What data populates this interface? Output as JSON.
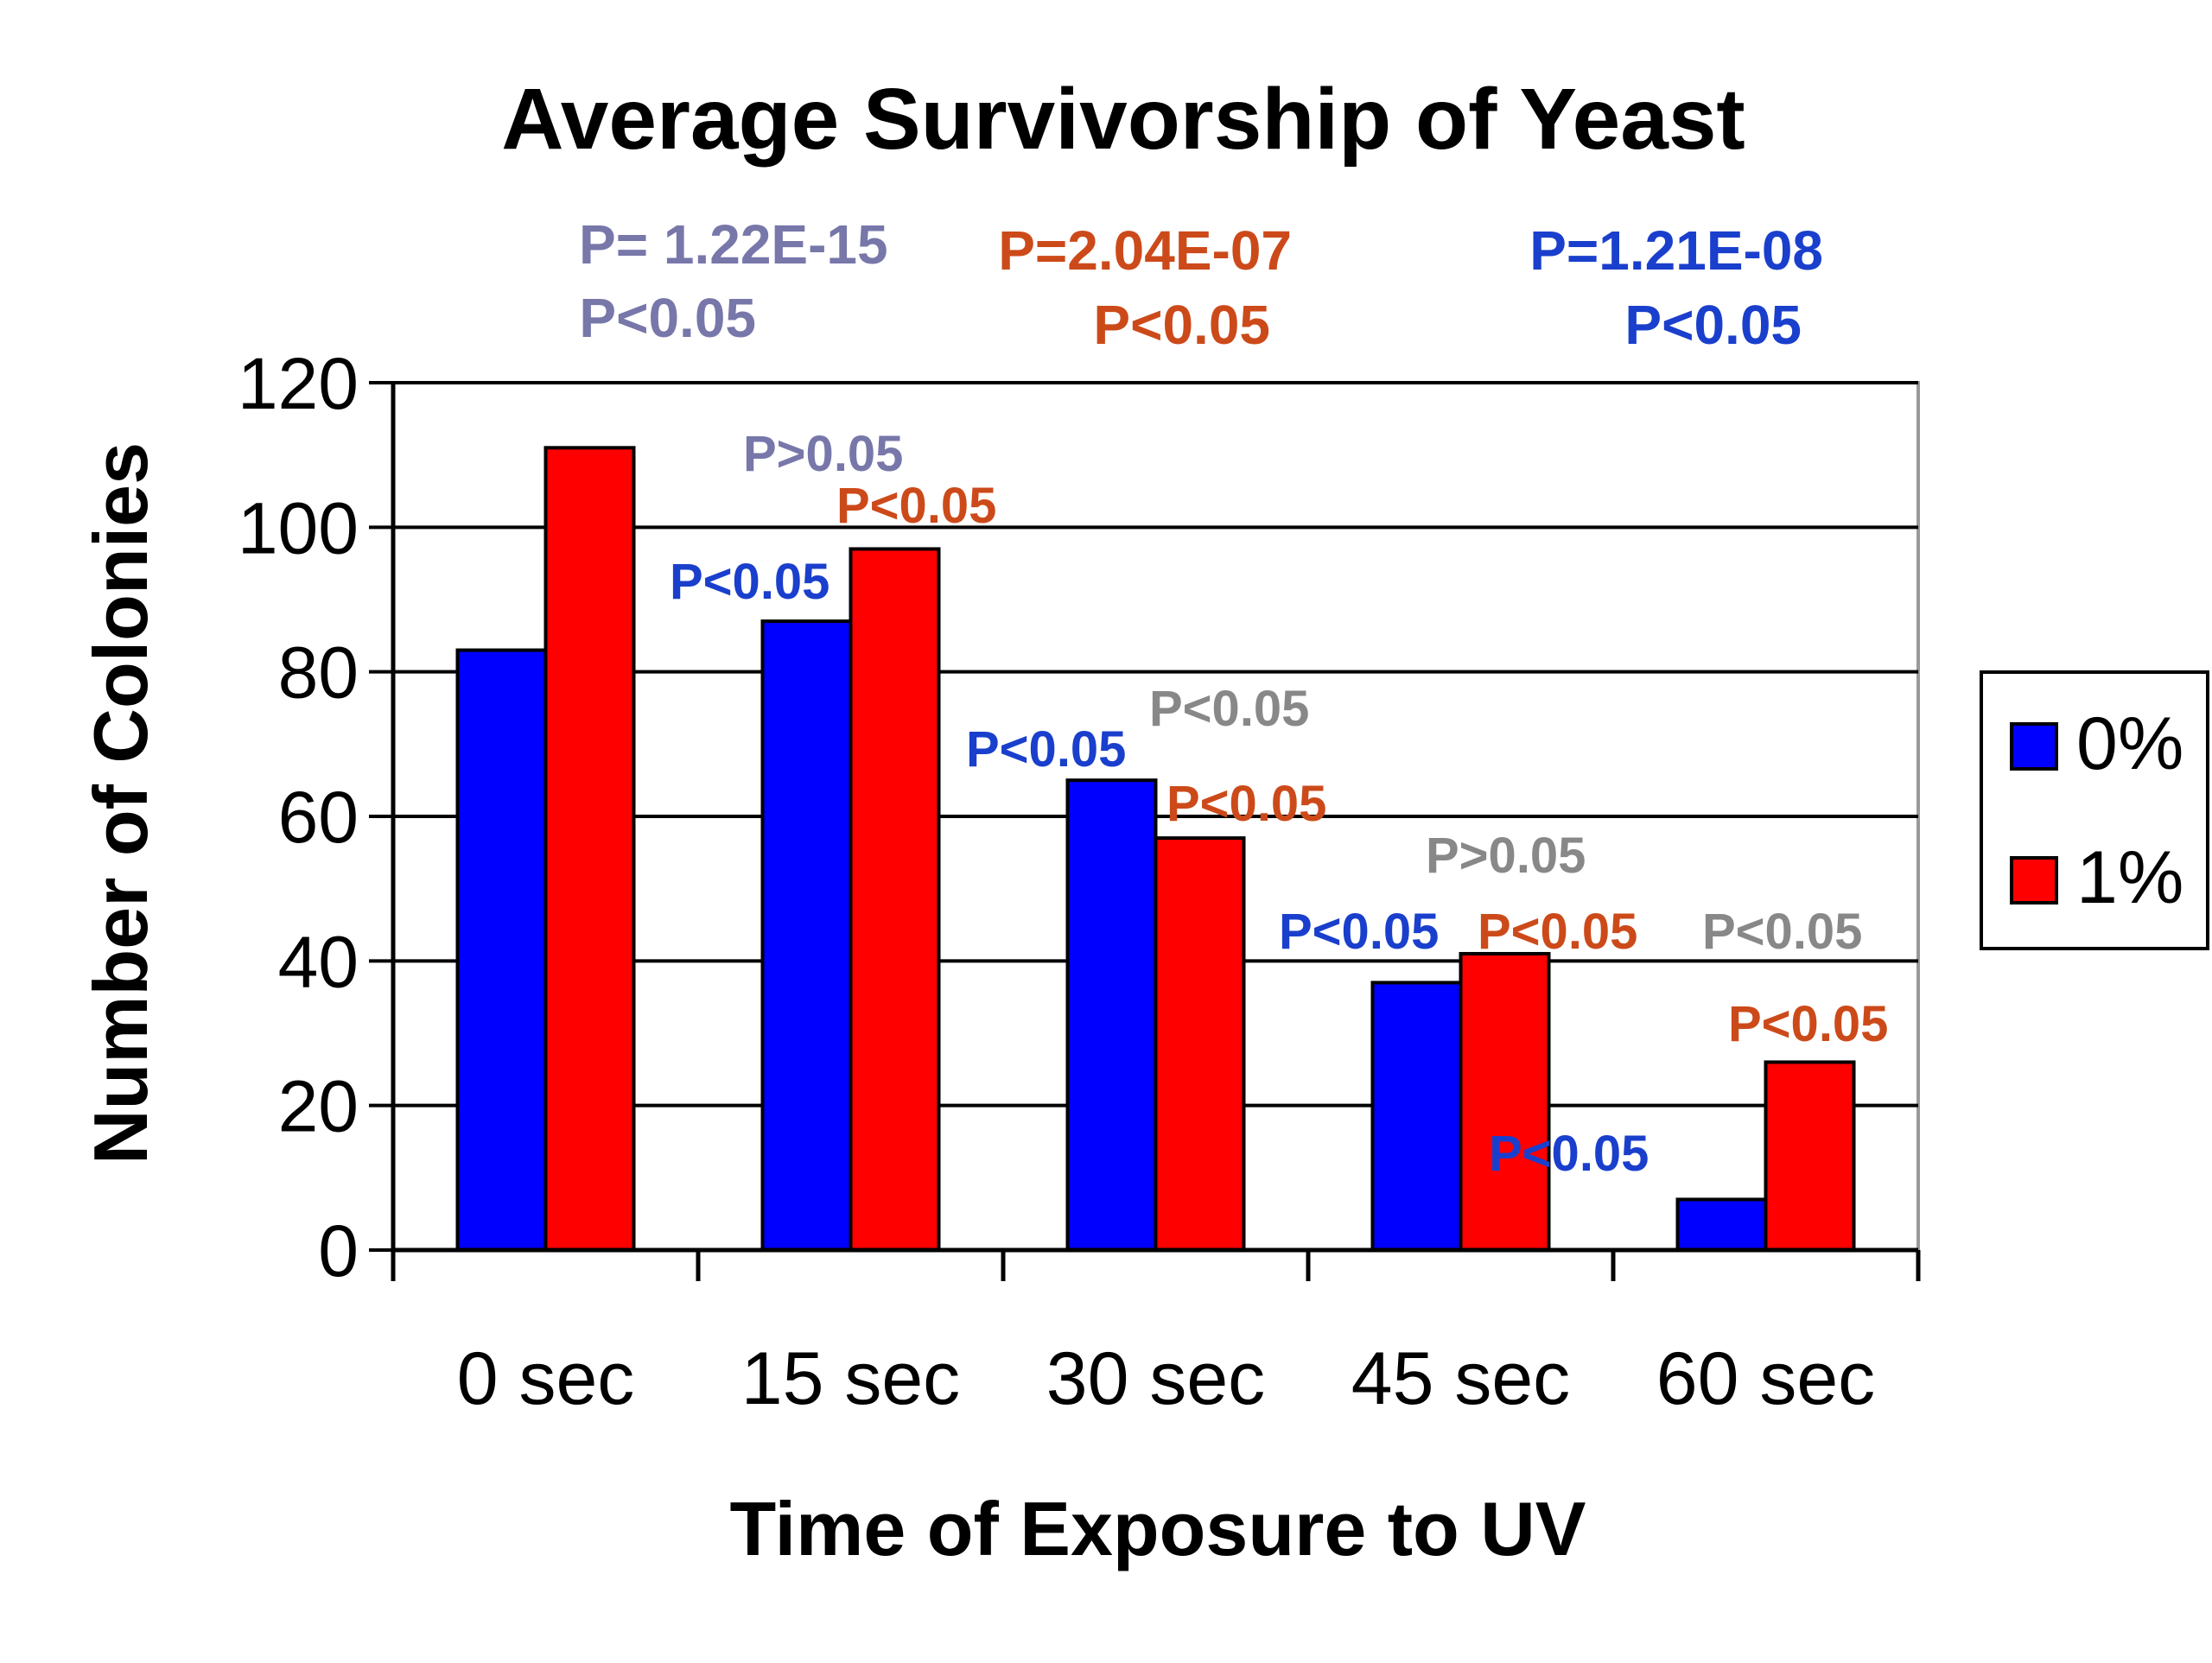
{
  "chart_data": {
    "type": "bar",
    "title": "Average Survivorship of  Yeast",
    "xlabel": "Time of Exposure to UV",
    "ylabel": "Number of Colonies",
    "categories": [
      "0 sec",
      "15 sec",
      "30 sec",
      "45 sec",
      "60 sec"
    ],
    "ylim": [
      0,
      120
    ],
    "yticks": [
      "0",
      "20",
      "40",
      "60",
      "80",
      "100",
      "120"
    ],
    "grid": true,
    "legend_position": "right",
    "series": [
      {
        "name": "0%",
        "color": "#0000FF",
        "values": [
          83,
          87,
          65,
          37,
          7
        ]
      },
      {
        "name": "1%",
        "color": "#FF0000",
        "values": [
          111,
          97,
          57,
          41,
          26
        ]
      }
    ],
    "top_annotations": [
      {
        "lines": [
          "P= 1.22E-15",
          "P<0.05"
        ],
        "color": "#7777AA"
      },
      {
        "lines": [
          "P=2.04E-07",
          "P<0.05"
        ],
        "color": "#CC4A1A"
      },
      {
        "lines": [
          "P=1.21E-08",
          "P<0.05"
        ],
        "color": "#1A3FCC"
      }
    ],
    "bar_annotations": [
      {
        "text": "P>0.05",
        "color": "#7777AA"
      },
      {
        "text": "P<0.05",
        "color": "#CC4A1A"
      },
      {
        "text": "P<0.05",
        "color": "#1A3FCC"
      },
      {
        "text": "P<0.05",
        "color": "#888888"
      },
      {
        "text": "P<0.05",
        "color": "#1A3FCC"
      },
      {
        "text": "P<0.05",
        "color": "#CC4A1A"
      },
      {
        "text": "P>0.05",
        "color": "#888888"
      },
      {
        "text": "P<0.05",
        "color": "#1A3FCC"
      },
      {
        "text": "P<0.05",
        "color": "#CC4A1A"
      },
      {
        "text": "P<0.05",
        "color": "#888888"
      },
      {
        "text": "P<0.05",
        "color": "#CC4A1A"
      },
      {
        "text": "P<0.05",
        "color": "#1A3FCC"
      }
    ]
  }
}
